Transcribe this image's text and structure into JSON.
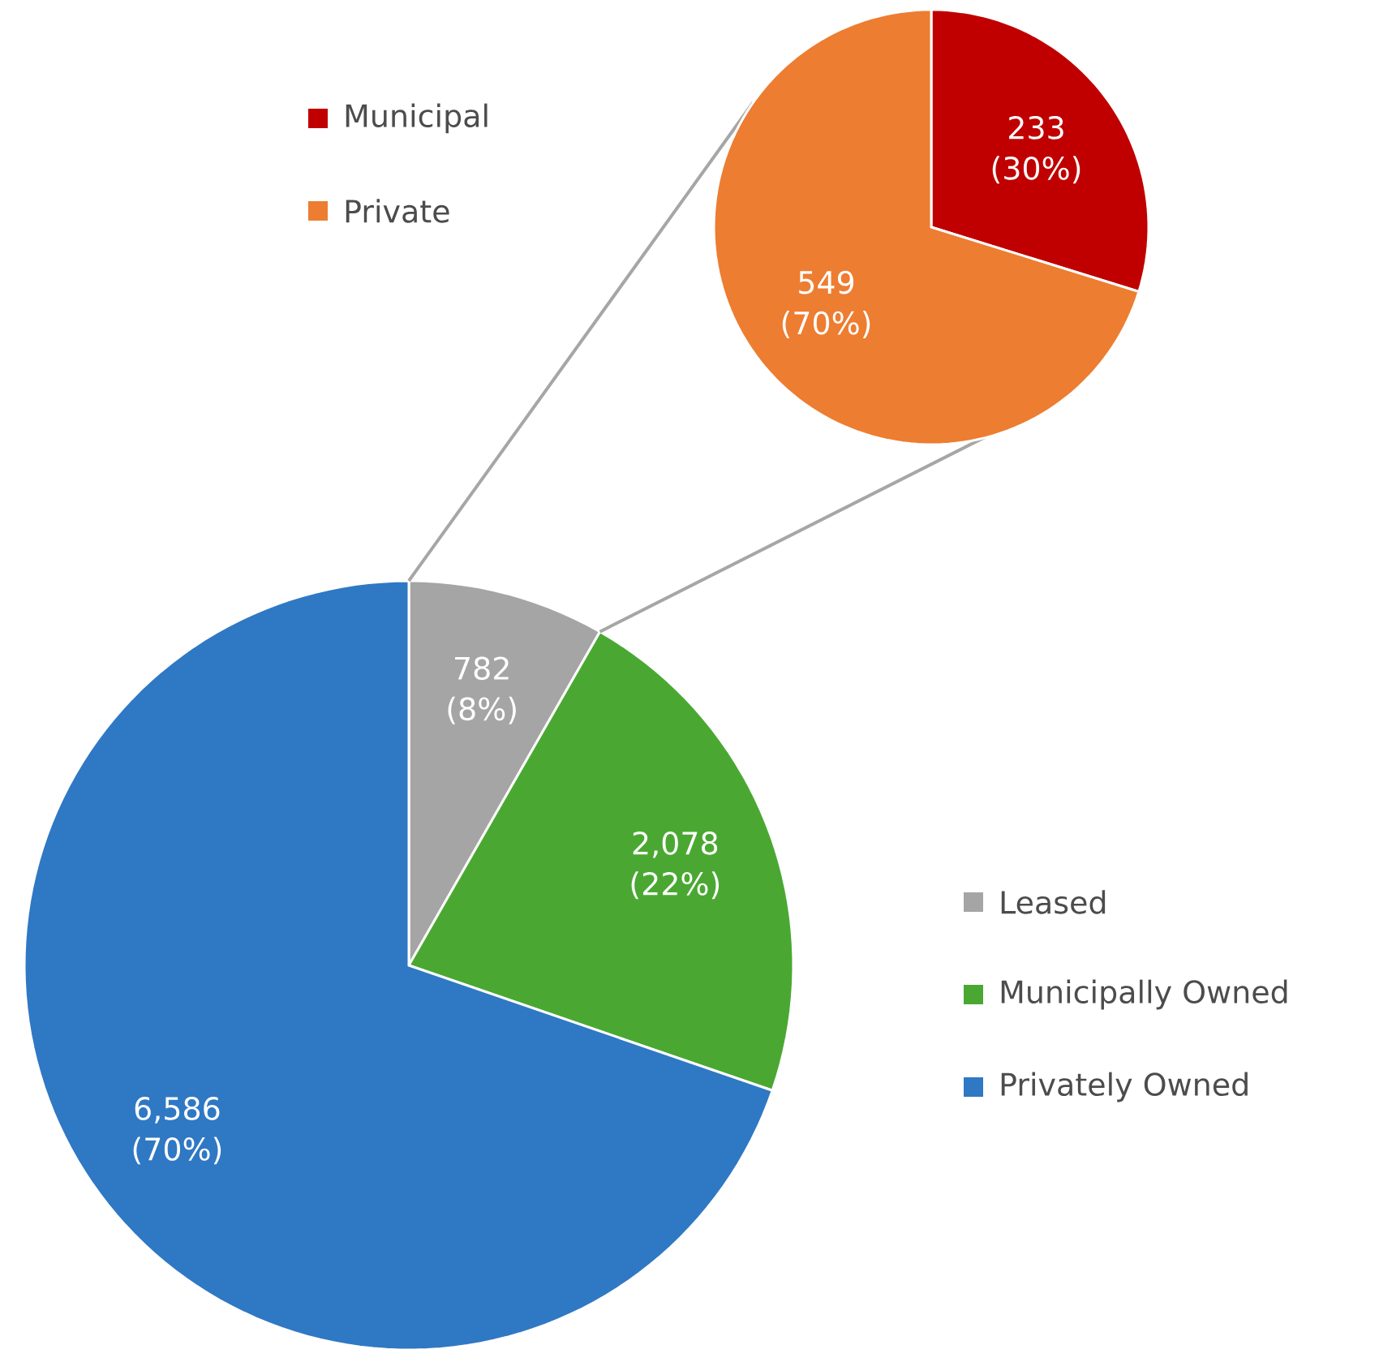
{
  "chart_data": [
    {
      "type": "pie",
      "categories": [
        "Leased",
        "Municipally Owned",
        "Privately Owned"
      ],
      "values": [
        782,
        2078,
        6586
      ],
      "colors": [
        "#a5a5a5",
        "#4aa832",
        "#2f78c4"
      ],
      "value_labels": [
        "782 (8%)",
        "2,078 (22%)",
        "6,586 (70%)"
      ],
      "legend": "right"
    },
    {
      "type": "pie",
      "categories": [
        "Municipal",
        "Private"
      ],
      "values": [
        233,
        549
      ],
      "colors": [
        "#c00000",
        "#ed7d31"
      ],
      "value_labels": [
        "233 (30%)",
        "549 (70%)"
      ],
      "legend": "left"
    }
  ]
}
